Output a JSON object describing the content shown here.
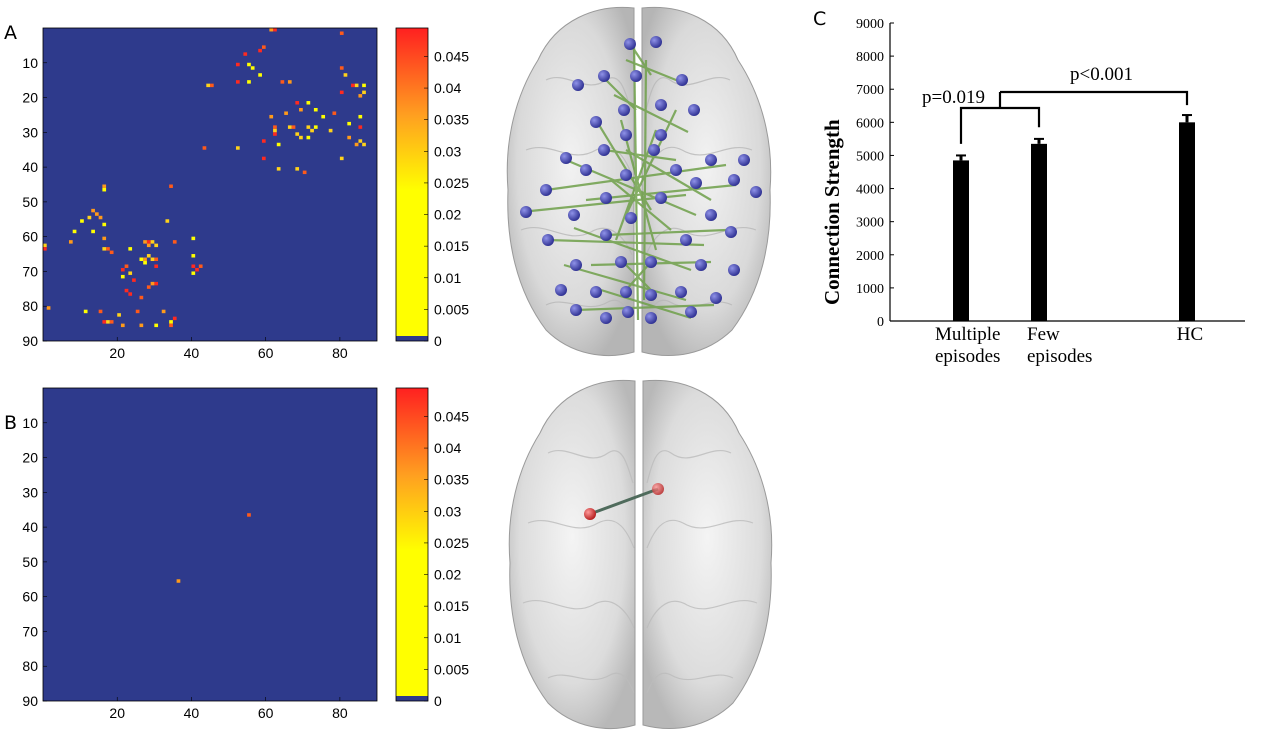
{
  "labels": {
    "a": "A",
    "b": "B",
    "c": "C"
  },
  "matrix_axes": {
    "y_ticks": [
      "10",
      "20",
      "30",
      "40",
      "50",
      "60",
      "70",
      "80",
      "90"
    ],
    "x_ticks": [
      "20",
      "40",
      "60",
      "80"
    ]
  },
  "colorbar": {
    "ticks": [
      "0.045",
      "0.04",
      "0.035",
      "0.03",
      "0.025",
      "0.02",
      "0.015",
      "0.01",
      "0.005",
      "0"
    ],
    "colors": {
      "low": "#2e3a8c",
      "mid": "#ffff00",
      "high": "#ff2020"
    }
  },
  "chart_data": [
    {
      "type": "heatmap",
      "panel": "A",
      "xlim": [
        0,
        90
      ],
      "ylim": [
        90,
        0
      ],
      "background_value": 0,
      "cells": [
        [
          63,
          1
        ],
        [
          62,
          1
        ],
        [
          81,
          2
        ],
        [
          60,
          6
        ],
        [
          59,
          7
        ],
        [
          55,
          8
        ],
        [
          53,
          11
        ],
        [
          56,
          11
        ],
        [
          57,
          12
        ],
        [
          59,
          14
        ],
        [
          81,
          12
        ],
        [
          82,
          14
        ],
        [
          53,
          16
        ],
        [
          56,
          16
        ],
        [
          46,
          17
        ],
        [
          45,
          17
        ],
        [
          65,
          16
        ],
        [
          67,
          16
        ],
        [
          85,
          17
        ],
        [
          84,
          17
        ],
        [
          87,
          17
        ],
        [
          81,
          19
        ],
        [
          86,
          20
        ],
        [
          87,
          19
        ],
        [
          72,
          22
        ],
        [
          69,
          22
        ],
        [
          74,
          24
        ],
        [
          70,
          24
        ],
        [
          66,
          25
        ],
        [
          79,
          25
        ],
        [
          76,
          26
        ],
        [
          62,
          26
        ],
        [
          86,
          26
        ],
        [
          83,
          28
        ],
        [
          72,
          29
        ],
        [
          67,
          29
        ],
        [
          68,
          29
        ],
        [
          63,
          29
        ],
        [
          78,
          30
        ],
        [
          73,
          30
        ],
        [
          74,
          29
        ],
        [
          86,
          29
        ],
        [
          63,
          30
        ],
        [
          69,
          31
        ],
        [
          63,
          31
        ],
        [
          70,
          32
        ],
        [
          83,
          32
        ],
        [
          72,
          32
        ],
        [
          60,
          33
        ],
        [
          86,
          33
        ],
        [
          85,
          34
        ],
        [
          87,
          34
        ],
        [
          64,
          34
        ],
        [
          53,
          35
        ],
        [
          44,
          35
        ],
        [
          81,
          38
        ],
        [
          60,
          38
        ],
        [
          64,
          41
        ],
        [
          69,
          41
        ],
        [
          71,
          42
        ],
        [
          35,
          46
        ],
        [
          17,
          46
        ],
        [
          17,
          47
        ],
        [
          14,
          53
        ],
        [
          15,
          54
        ],
        [
          13,
          55
        ],
        [
          16,
          55
        ],
        [
          11,
          56
        ],
        [
          34,
          56
        ],
        [
          17,
          57
        ],
        [
          14,
          59
        ],
        [
          9,
          59
        ],
        [
          17,
          61
        ],
        [
          41,
          61
        ],
        [
          29,
          62
        ],
        [
          28,
          62
        ],
        [
          30,
          62
        ],
        [
          1,
          63
        ],
        [
          8,
          62
        ],
        [
          36,
          62
        ],
        [
          29,
          63
        ],
        [
          31,
          63
        ],
        [
          1,
          64
        ],
        [
          24,
          64
        ],
        [
          18,
          64
        ],
        [
          17,
          64
        ],
        [
          19,
          65
        ],
        [
          29,
          66
        ],
        [
          28,
          67
        ],
        [
          27,
          67
        ],
        [
          41,
          66
        ],
        [
          31,
          67
        ],
        [
          30,
          67
        ],
        [
          28,
          68
        ],
        [
          43,
          69
        ],
        [
          31,
          69
        ],
        [
          23,
          69
        ],
        [
          41,
          69
        ],
        [
          22,
          70
        ],
        [
          42,
          70
        ],
        [
          24,
          71
        ],
        [
          41,
          71
        ],
        [
          22,
          72
        ],
        [
          25,
          73
        ],
        [
          31,
          74
        ],
        [
          30,
          74
        ],
        [
          29,
          75
        ],
        [
          23,
          76
        ],
        [
          24,
          77
        ],
        [
          27,
          78
        ],
        [
          33,
          82
        ],
        [
          12,
          82
        ],
        [
          16,
          82
        ],
        [
          26,
          82
        ],
        [
          21,
          83
        ],
        [
          2,
          81
        ],
        [
          35,
          85
        ],
        [
          36,
          84
        ],
        [
          35,
          86
        ],
        [
          17,
          85
        ],
        [
          18,
          85
        ],
        [
          19,
          85
        ],
        [
          22,
          86
        ],
        [
          27,
          86
        ],
        [
          31,
          86
        ]
      ]
    },
    {
      "type": "heatmap",
      "panel": "B",
      "xlim": [
        0,
        90
      ],
      "ylim": [
        90,
        0
      ],
      "background_value": 0,
      "cells": [
        [
          56,
          37
        ],
        [
          37,
          56
        ]
      ]
    },
    {
      "type": "bar",
      "panel": "C",
      "categories": [
        [
          "Multiple",
          "episodes"
        ],
        [
          "Few",
          "episodes"
        ],
        [
          "HC"
        ]
      ],
      "values": [
        4850,
        5350,
        6000
      ],
      "errors": [
        150,
        150,
        220
      ],
      "ylabel": "Connection Strength",
      "ylim": [
        0,
        9000
      ],
      "yticks": [
        "0",
        "1000",
        "2000",
        "3000",
        "4000",
        "5000",
        "6000",
        "7000",
        "8000",
        "9000"
      ],
      "annotations": [
        {
          "text": "p=0.019",
          "between": [
            0,
            1
          ]
        },
        {
          "text": "p<0.001",
          "between": [
            "group",
            2
          ]
        }
      ],
      "bar_color": "#000000"
    }
  ],
  "brain": {
    "nodes_a_color": "#3c3ea8",
    "edges_a_color": "#6fa04a",
    "nodes_b_color": "#d8302f",
    "edge_b_color": "#4f6b5c"
  }
}
